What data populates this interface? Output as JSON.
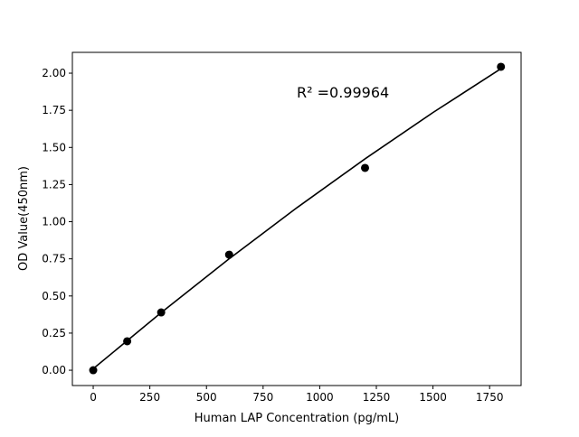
{
  "chart_data": {
    "type": "scatter",
    "title": "",
    "xlabel": "Human LAP Concentration (pg/mL)",
    "ylabel": "OD Value(450nm)",
    "xlim": [
      -92,
      1889
    ],
    "ylim": [
      -0.103,
      2.14
    ],
    "x_ticks": [
      0,
      250,
      500,
      750,
      1000,
      1250,
      1500,
      1750
    ],
    "x_tick_labels": [
      "0",
      "250",
      "500",
      "750",
      "1000",
      "1250",
      "1500",
      "1750"
    ],
    "y_ticks": [
      0,
      0.25,
      0.5,
      0.75,
      1.0,
      1.25,
      1.5,
      1.75,
      2.0
    ],
    "y_tick_labels": [
      "0.00",
      "0.25",
      "0.50",
      "0.75",
      "1.00",
      "1.25",
      "1.50",
      "1.75",
      "2.00"
    ],
    "grid": false,
    "points": {
      "x": [
        0,
        150,
        300,
        600,
        1200,
        1800
      ],
      "y": [
        0.0,
        0.195,
        0.389,
        0.778,
        1.362,
        2.043
      ],
      "color": "#000000"
    },
    "fit_line": {
      "x": [
        0,
        300,
        600,
        900,
        1200,
        1500,
        1800
      ],
      "y": [
        0.01,
        0.388,
        0.75,
        1.095,
        1.423,
        1.735,
        2.03
      ],
      "color": "#000000"
    },
    "annotation": "R² =0.99964"
  }
}
